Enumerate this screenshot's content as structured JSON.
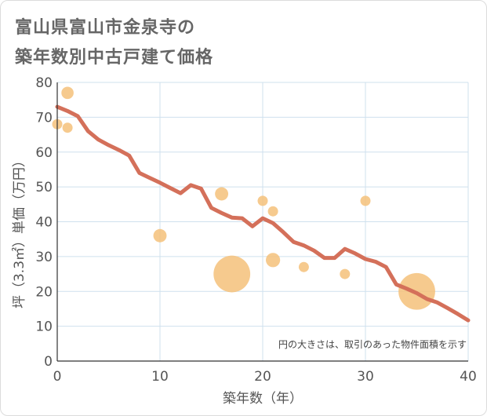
{
  "header": {
    "title_line1": "富山県富山市金泉寺の",
    "title_line2": "築年数別中古戸建て価格"
  },
  "colors": {
    "line": "#d4705a",
    "bubble": "#f5c17a",
    "grid": "#cfe0ee",
    "axis": "#333333"
  },
  "chart_data": {
    "type": "scatter",
    "xlabel": "築年数（年）",
    "ylabel": "坪（3.3㎡）単価（万円）",
    "xlim": [
      0,
      40
    ],
    "ylim": [
      0,
      80
    ],
    "xticks": [
      0,
      10,
      20,
      30,
      40
    ],
    "yticks": [
      0,
      10,
      20,
      30,
      40,
      50,
      60,
      70,
      80
    ],
    "note": "円の大きさは、取引のあった物件面積を示す",
    "points": [
      {
        "x": 0,
        "y": 68,
        "size": 1
      },
      {
        "x": 1,
        "y": 77,
        "size": 1.2
      },
      {
        "x": 1,
        "y": 67,
        "size": 1
      },
      {
        "x": 10,
        "y": 36,
        "size": 1.3
      },
      {
        "x": 16,
        "y": 48,
        "size": 1.3
      },
      {
        "x": 17,
        "y": 25,
        "size": 3.6
      },
      {
        "x": 20,
        "y": 46,
        "size": 1
      },
      {
        "x": 21,
        "y": 43,
        "size": 1
      },
      {
        "x": 21,
        "y": 29,
        "size": 1.4
      },
      {
        "x": 24,
        "y": 27,
        "size": 1
      },
      {
        "x": 28,
        "y": 25,
        "size": 1
      },
      {
        "x": 30,
        "y": 46,
        "size": 1
      },
      {
        "x": 35,
        "y": 20,
        "size": 3.6
      }
    ],
    "trend": {
      "x": [
        0,
        1,
        2,
        3,
        4,
        5,
        6,
        7,
        8,
        9,
        10,
        11,
        12,
        13,
        14,
        15,
        16,
        17,
        18,
        19,
        20,
        21,
        22,
        23,
        24,
        25,
        26,
        27,
        28,
        29,
        30,
        31,
        32,
        33,
        34,
        35,
        36,
        37,
        38,
        39,
        40
      ],
      "y": [
        73,
        71.8,
        70.3,
        66,
        63.6,
        62,
        60.6,
        59,
        54,
        52.6,
        51.2,
        49.7,
        48.2,
        50.5,
        49.5,
        44,
        42.5,
        41.2,
        41,
        38.7,
        41,
        39.6,
        37,
        34.2,
        33.2,
        31.7,
        29.6,
        29.6,
        32.2,
        30.9,
        29.3,
        28.5,
        27,
        22,
        20.8,
        19.5,
        17.8,
        16.8,
        15.2,
        13.5,
        11.7
      ]
    }
  }
}
